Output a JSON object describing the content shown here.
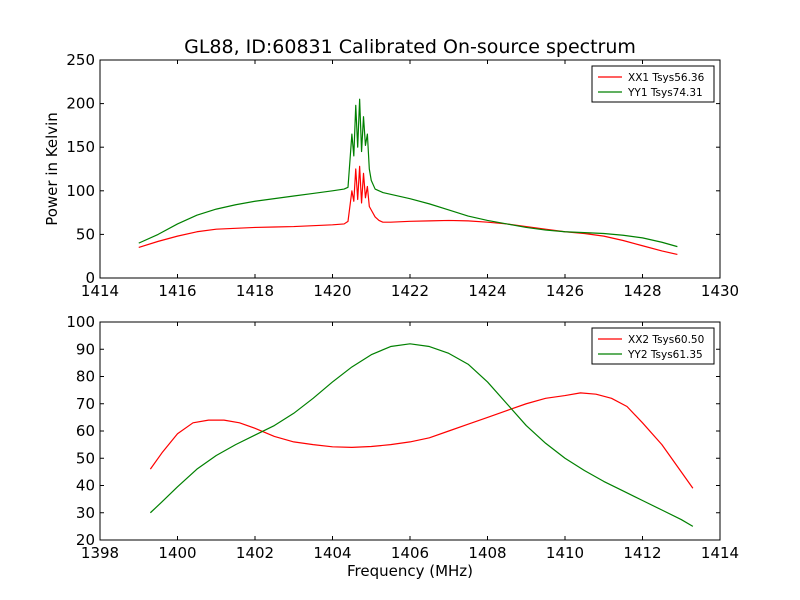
{
  "figure": {
    "title": "GL88, ID:60831 Calibrated On-source spectrum"
  },
  "chart_data": [
    {
      "type": "line",
      "xlabel": "",
      "ylabel": "Power in Kelvin",
      "xlim": [
        1414,
        1430
      ],
      "ylim": [
        0,
        250
      ],
      "xticks": [
        1414,
        1416,
        1418,
        1420,
        1422,
        1424,
        1426,
        1428,
        1430
      ],
      "yticks": [
        0,
        50,
        100,
        150,
        200,
        250
      ],
      "legend_position": "top-right",
      "series": [
        {
          "name": "XX1 Tsys56.36",
          "color": "#ff0000",
          "x": [
            1415.0,
            1415.5,
            1416.0,
            1416.5,
            1417.0,
            1417.5,
            1418.0,
            1418.5,
            1419.0,
            1419.5,
            1420.0,
            1420.3,
            1420.4,
            1420.5,
            1420.55,
            1420.6,
            1420.65,
            1420.7,
            1420.75,
            1420.8,
            1420.85,
            1420.9,
            1420.95,
            1421.0,
            1421.1,
            1421.2,
            1421.3,
            1421.5,
            1422.0,
            1422.5,
            1423.0,
            1423.5,
            1424.0,
            1424.5,
            1425.0,
            1425.5,
            1426.0,
            1426.5,
            1427.0,
            1427.5,
            1428.0,
            1428.5,
            1428.9
          ],
          "y": [
            35,
            42,
            48,
            53,
            56,
            57,
            58,
            58.5,
            59,
            60,
            61,
            62,
            65,
            100,
            88,
            125,
            90,
            128,
            86,
            120,
            92,
            105,
            82,
            78,
            70,
            66,
            64,
            64,
            65,
            65.5,
            66,
            65.5,
            64,
            62,
            59,
            56,
            53,
            51,
            48,
            43,
            37,
            31,
            27
          ]
        },
        {
          "name": "YY1 Tsys74.31",
          "color": "#008000",
          "x": [
            1415.0,
            1415.5,
            1416.0,
            1416.5,
            1417.0,
            1417.5,
            1418.0,
            1418.5,
            1419.0,
            1419.5,
            1420.0,
            1420.3,
            1420.4,
            1420.5,
            1420.55,
            1420.6,
            1420.65,
            1420.7,
            1420.75,
            1420.8,
            1420.85,
            1420.9,
            1420.95,
            1421.0,
            1421.1,
            1421.2,
            1421.3,
            1421.5,
            1422.0,
            1422.5,
            1423.0,
            1423.5,
            1424.0,
            1424.5,
            1425.0,
            1425.5,
            1426.0,
            1426.5,
            1427.0,
            1427.5,
            1428.0,
            1428.5,
            1428.9
          ],
          "y": [
            40,
            50,
            62,
            72,
            79,
            84,
            88,
            91,
            94,
            97,
            100,
            102,
            104,
            165,
            140,
            198,
            150,
            205,
            145,
            185,
            152,
            165,
            125,
            112,
            102,
            100,
            98,
            96,
            91,
            85,
            78,
            71,
            66,
            62,
            58,
            55,
            53,
            52,
            51,
            49,
            46,
            41,
            36
          ]
        }
      ]
    },
    {
      "type": "line",
      "xlabel": "Frequency (MHz)",
      "ylabel": "",
      "xlim": [
        1398,
        1414
      ],
      "ylim": [
        20,
        100
      ],
      "xticks": [
        1398,
        1400,
        1402,
        1404,
        1406,
        1408,
        1410,
        1412,
        1414
      ],
      "yticks": [
        20,
        30,
        40,
        50,
        60,
        70,
        80,
        90,
        100
      ],
      "legend_position": "top-right",
      "series": [
        {
          "name": "XX2 Tsys60.50",
          "color": "#ff0000",
          "x": [
            1399.3,
            1399.6,
            1400.0,
            1400.4,
            1400.8,
            1401.2,
            1401.6,
            1402.0,
            1402.5,
            1403.0,
            1403.5,
            1404.0,
            1404.5,
            1405.0,
            1405.5,
            1406.0,
            1406.5,
            1407.0,
            1407.5,
            1408.0,
            1408.5,
            1409.0,
            1409.5,
            1410.0,
            1410.4,
            1410.8,
            1411.2,
            1411.6,
            1412.0,
            1412.5,
            1413.0,
            1413.3
          ],
          "y": [
            46,
            52,
            59,
            63,
            64,
            64,
            63,
            61,
            58,
            56,
            55,
            54.2,
            54,
            54.3,
            55,
            56,
            57.5,
            60,
            62.5,
            65,
            67.5,
            70,
            72,
            73,
            74,
            73.5,
            72,
            69,
            63,
            55,
            45,
            39
          ]
        },
        {
          "name": "YY2 Tsys61.35",
          "color": "#008000",
          "x": [
            1399.3,
            1399.6,
            1400.0,
            1400.5,
            1401.0,
            1401.5,
            1402.0,
            1402.5,
            1403.0,
            1403.5,
            1404.0,
            1404.5,
            1405.0,
            1405.5,
            1406.0,
            1406.5,
            1407.0,
            1407.5,
            1408.0,
            1408.5,
            1409.0,
            1409.5,
            1410.0,
            1410.5,
            1411.0,
            1411.5,
            1412.0,
            1412.5,
            1413.0,
            1413.3
          ],
          "y": [
            30,
            34,
            39.5,
            46,
            51,
            55,
            58.5,
            62,
            66.5,
            72,
            78,
            83.5,
            88,
            91,
            92,
            91,
            88.5,
            84.5,
            78,
            70,
            62,
            55.5,
            50,
            45.5,
            41.5,
            38,
            34.5,
            31,
            27.5,
            25
          ]
        }
      ]
    }
  ]
}
